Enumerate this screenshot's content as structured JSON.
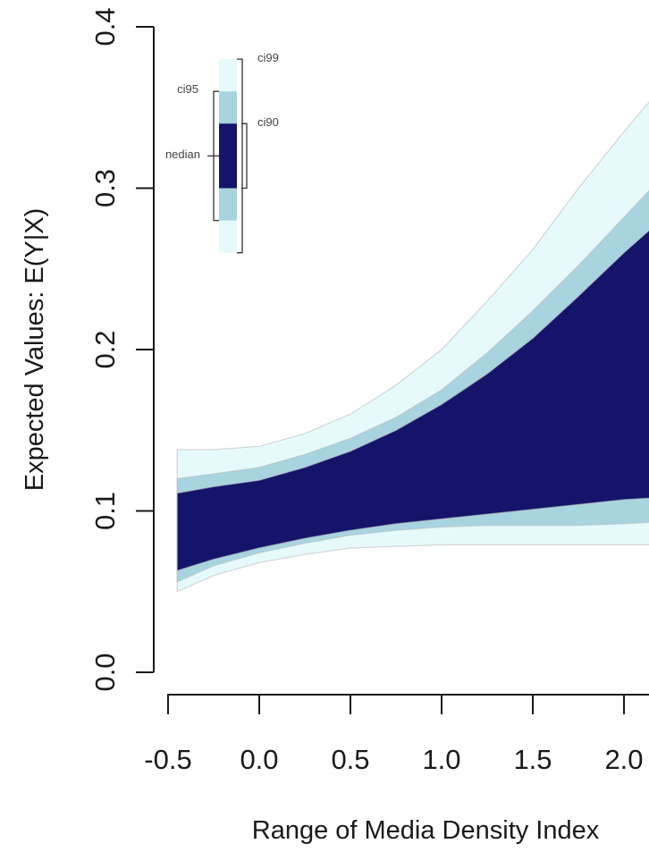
{
  "chart_data": {
    "type": "area",
    "xlabel": "Range of Media Density Index",
    "ylabel": "Expected Values: E(Y|X)",
    "xlim": [
      -0.5,
      2.0
    ],
    "ylim": [
      0.0,
      0.4
    ],
    "x_ticks": [
      "-0.5",
      "0.0",
      "0.5",
      "1.0",
      "1.5",
      "2.0"
    ],
    "y_ticks": [
      "0.0",
      "0.1",
      "0.2",
      "0.3",
      "0.4"
    ],
    "grid": false,
    "x": [
      -0.45,
      -0.25,
      0.0,
      0.25,
      0.5,
      0.75,
      1.0,
      1.25,
      1.5,
      1.75,
      2.0,
      2.15
    ],
    "bands": [
      {
        "name": "ci99",
        "color": "#e6fafc",
        "lower": [
          0.05,
          0.06,
          0.068,
          0.073,
          0.077,
          0.078,
          0.079,
          0.079,
          0.079,
          0.079,
          0.079,
          0.079
        ],
        "upper": [
          0.138,
          0.138,
          0.14,
          0.148,
          0.16,
          0.178,
          0.2,
          0.23,
          0.262,
          0.3,
          0.335,
          0.355
        ]
      },
      {
        "name": "ci95",
        "color": "#a8d4e0",
        "lower": [
          0.056,
          0.066,
          0.074,
          0.08,
          0.085,
          0.088,
          0.09,
          0.091,
          0.091,
          0.091,
          0.092,
          0.093
        ],
        "upper": [
          0.12,
          0.123,
          0.127,
          0.135,
          0.145,
          0.158,
          0.175,
          0.198,
          0.224,
          0.252,
          0.282,
          0.3
        ]
      },
      {
        "name": "ci90",
        "color": "#14146a",
        "lower": [
          0.063,
          0.07,
          0.077,
          0.083,
          0.088,
          0.092,
          0.095,
          0.098,
          0.101,
          0.104,
          0.107,
          0.108
        ],
        "upper": [
          0.111,
          0.115,
          0.119,
          0.127,
          0.137,
          0.15,
          0.166,
          0.185,
          0.207,
          0.233,
          0.26,
          0.275
        ]
      }
    ],
    "legend": {
      "placement": "top-left",
      "labels": {
        "ci99": "ci99",
        "ci95": "ci95",
        "ci90": "ci90",
        "median": "median"
      },
      "median_label_visible": "nedian",
      "glyph": {
        "ci99": [
          0.26,
          0.38
        ],
        "ci95": [
          0.28,
          0.36
        ],
        "ci90": [
          0.3,
          0.34
        ],
        "median": 0.32
      }
    }
  }
}
